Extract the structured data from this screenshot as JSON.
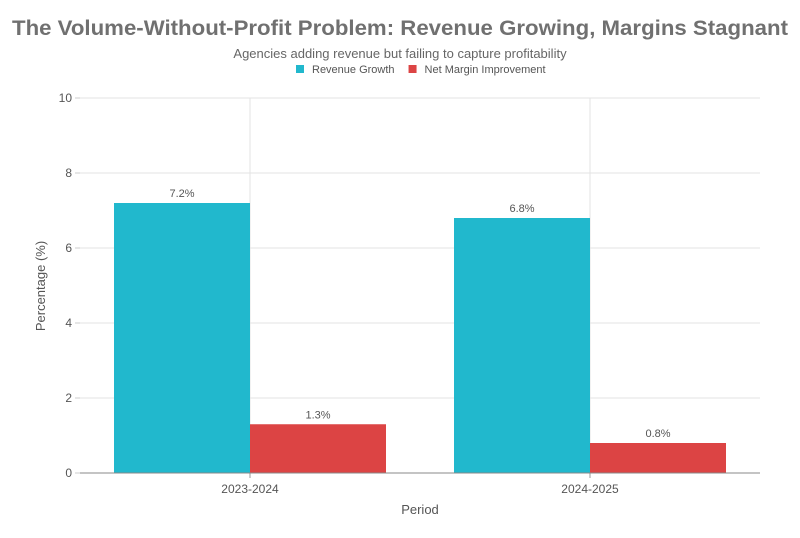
{
  "chart_data": {
    "type": "bar",
    "title": "The Volume-Without-Profit Problem: Revenue Growing, Margins Stagnant",
    "subtitle": "Agencies adding revenue but failing to capture profitability",
    "xlabel": "Period",
    "ylabel": "Percentage (%)",
    "categories": [
      "2023-2024",
      "2024-2025"
    ],
    "series": [
      {
        "name": "Revenue Growth",
        "values": [
          7.2,
          6.8
        ],
        "labels": [
          "7.2%",
          "6.8%"
        ],
        "color": "#21b8cd"
      },
      {
        "name": "Net Margin Improvement",
        "values": [
          1.3,
          0.8
        ],
        "labels": [
          "1.3%",
          "0.8%"
        ],
        "color": "#dc4444"
      }
    ],
    "ylim": [
      0,
      10
    ],
    "yticks": [
      "0",
      "2",
      "4",
      "6",
      "8",
      "10"
    ],
    "grid": true,
    "legend": "top-center"
  }
}
